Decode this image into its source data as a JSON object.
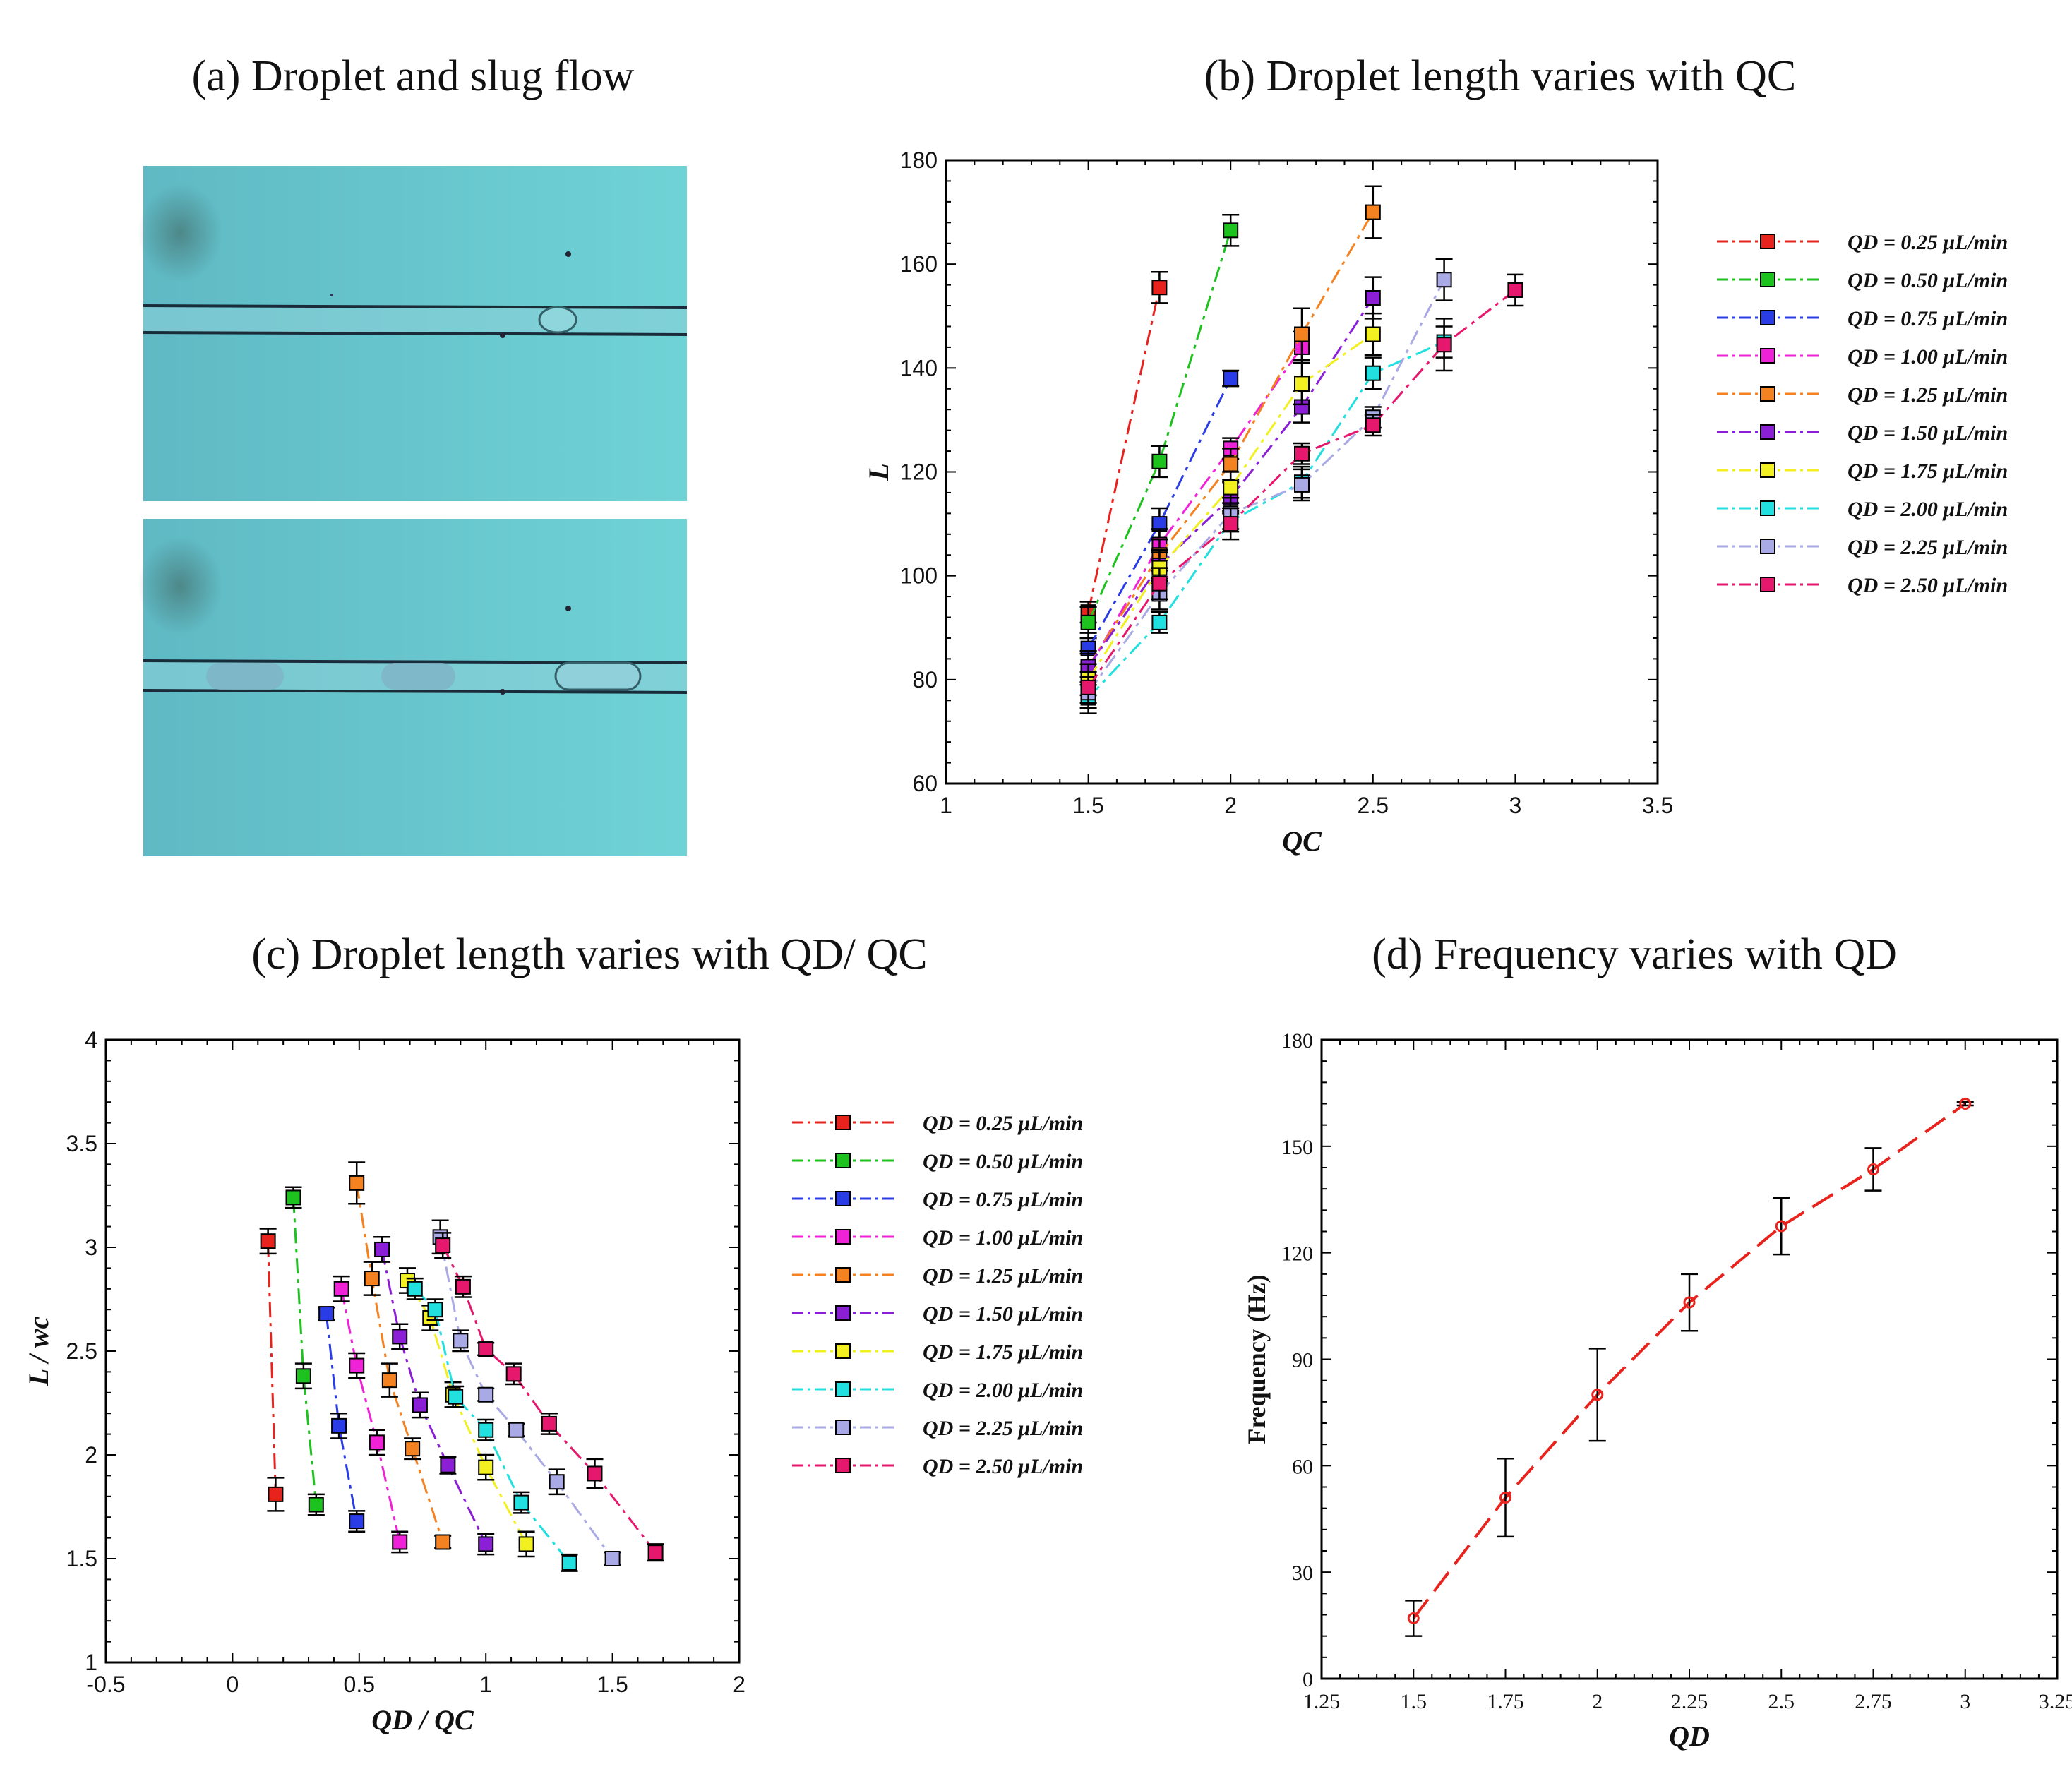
{
  "panel_a": {
    "title": "(a) Droplet and slug flow",
    "image_colors": {
      "bg1": "#5fb9c4",
      "bg2": "#6fd3d6",
      "line": "#1a2c3a",
      "droplet": "#7ec7d2"
    }
  },
  "legend_labels": [
    "QD = 0.25 μL/min",
    "QD = 0.50 μL/min",
    "QD = 0.75 μL/min",
    "QD = 1.00 μL/min",
    "QD = 1.25 μL/min",
    "QD = 1.50 μL/min",
    "QD = 1.75 μL/min",
    "QD = 2.00 μL/min",
    "QD = 2.25 μL/min",
    "QD = 2.50 μL/min"
  ],
  "chart_data": [
    {
      "id": "b",
      "type": "line",
      "title": "(b) Droplet length varies with QC",
      "xlabel": "QC",
      "ylabel": "L",
      "xlim": [
        1,
        3.5
      ],
      "ylim": [
        60,
        180
      ],
      "xticks": [
        "1",
        "1.5",
        "2",
        "2.5",
        "3",
        "3.5"
      ],
      "yticks": [
        "60",
        "80",
        "100",
        "120",
        "140",
        "160",
        "180"
      ],
      "series": [
        {
          "name": "QD = 0.25 μL/min",
          "color": "#e8231e",
          "points": [
            [
              1.5,
              93,
              2
            ],
            [
              1.75,
              155.5,
              3
            ]
          ]
        },
        {
          "name": "QD = 0.50 μL/min",
          "color": "#1ec21e",
          "points": [
            [
              1.5,
              91,
              3
            ],
            [
              1.75,
              122,
              3
            ],
            [
              2,
              166.5,
              3
            ]
          ]
        },
        {
          "name": "QD = 0.75 μL/min",
          "color": "#2a3ce6",
          "points": [
            [
              1.5,
              86,
              3
            ],
            [
              1.75,
              110,
              3
            ],
            [
              2,
              138,
              1.5
            ]
          ]
        },
        {
          "name": "QD = 1.00 μL/min",
          "color": "#f022d8",
          "points": [
            [
              1.5,
              82,
              3
            ],
            [
              1.75,
              106,
              3
            ],
            [
              2,
              124.5,
              2
            ],
            [
              2.25,
              144,
              3
            ]
          ]
        },
        {
          "name": "QD = 1.25 μL/min",
          "color": "#f58220",
          "points": [
            [
              1.5,
              82.5,
              3
            ],
            [
              1.75,
              104,
              3
            ],
            [
              2,
              121.5,
              3
            ],
            [
              2.25,
              146.5,
              5
            ],
            [
              2.5,
              170,
              5
            ]
          ]
        },
        {
          "name": "QD = 1.50 μL/min",
          "color": "#8b1fd6",
          "points": [
            [
              1.5,
              82.5,
              3
            ],
            [
              1.75,
              102,
              3
            ],
            [
              2,
              115,
              3
            ],
            [
              2.25,
              132.5,
              3
            ],
            [
              2.5,
              153.5,
              4
            ]
          ]
        },
        {
          "name": "QD = 1.75 μL/min",
          "color": "#f2f020",
          "points": [
            [
              1.5,
              80,
              3
            ],
            [
              1.75,
              101.5,
              3
            ],
            [
              2,
              117,
              3
            ],
            [
              2.25,
              137,
              4
            ],
            [
              2.5,
              146.5,
              4
            ]
          ]
        },
        {
          "name": "QD = 2.00 μL/min",
          "color": "#22e0e0",
          "points": [
            [
              1.5,
              76.5,
              3
            ],
            [
              1.75,
              91,
              2
            ],
            [
              2,
              110.5,
              2
            ],
            [
              2.25,
              118,
              3
            ],
            [
              2.5,
              139,
              3
            ],
            [
              2.75,
              145,
              3
            ]
          ]
        },
        {
          "name": "QD = 2.25 μL/min",
          "color": "#a9a9e6",
          "points": [
            [
              1.5,
              77.5,
              3
            ],
            [
              1.75,
              96.5,
              3
            ],
            [
              2,
              112,
              3
            ],
            [
              2.25,
              117.5,
              3
            ],
            [
              2.5,
              130.5,
              2
            ],
            [
              2.75,
              157,
              4
            ]
          ]
        },
        {
          "name": "QD = 2.50 μL/min",
          "color": "#e6186e",
          "points": [
            [
              1.5,
              78.5,
              3
            ],
            [
              1.75,
              98.5,
              3
            ],
            [
              2,
              110,
              3
            ],
            [
              2.25,
              123.5,
              2
            ],
            [
              2.5,
              129,
              2
            ],
            [
              2.75,
              144.5,
              5
            ],
            [
              3,
              155,
              3
            ]
          ]
        }
      ]
    },
    {
      "id": "c",
      "type": "line",
      "title": "(c) Droplet length varies with QD/ QC",
      "xlabel": "QD / QC",
      "ylabel": "L / wc",
      "xlim": [
        -0.5,
        2
      ],
      "ylim": [
        1,
        4
      ],
      "xticks": [
        "-0.5",
        "0",
        "0.5",
        "1",
        "1.5",
        "2"
      ],
      "yticks": [
        "1",
        "1.5",
        "2",
        "2.5",
        "3",
        "3.5",
        "4"
      ],
      "series": [
        {
          "name": "QD = 0.25 μL/min",
          "color": "#e8231e",
          "points": [
            [
              0.14,
              3.03,
              0.06
            ],
            [
              0.17,
              1.81,
              0.08
            ]
          ]
        },
        {
          "name": "QD = 0.50 μL/min",
          "color": "#1ec21e",
          "points": [
            [
              0.24,
              3.24,
              0.05
            ],
            [
              0.28,
              2.38,
              0.06
            ],
            [
              0.33,
              1.76,
              0.05
            ]
          ]
        },
        {
          "name": "QD = 0.75 μL/min",
          "color": "#2a3ce6",
          "points": [
            [
              0.37,
              2.68,
              0.03
            ],
            [
              0.42,
              2.14,
              0.06
            ],
            [
              0.49,
              1.68,
              0.05
            ]
          ]
        },
        {
          "name": "QD = 1.00 μL/min",
          "color": "#f022d8",
          "points": [
            [
              0.43,
              2.8,
              0.06
            ],
            [
              0.49,
              2.43,
              0.06
            ],
            [
              0.57,
              2.06,
              0.06
            ],
            [
              0.66,
              1.58,
              0.05
            ]
          ]
        },
        {
          "name": "QD = 1.25 μL/min",
          "color": "#f58220",
          "points": [
            [
              0.49,
              3.31,
              0.1
            ],
            [
              0.55,
              2.85,
              0.08
            ],
            [
              0.62,
              2.36,
              0.08
            ],
            [
              0.71,
              2.03,
              0.05
            ],
            [
              0.83,
              1.58,
              0.03
            ]
          ]
        },
        {
          "name": "QD = 1.50 μL/min",
          "color": "#8b1fd6",
          "points": [
            [
              0.59,
              2.99,
              0.06
            ],
            [
              0.66,
              2.57,
              0.06
            ],
            [
              0.74,
              2.24,
              0.06
            ],
            [
              0.85,
              1.95,
              0.04
            ],
            [
              1.0,
              1.57,
              0.05
            ]
          ]
        },
        {
          "name": "QD = 1.75 μL/min",
          "color": "#f2f020",
          "points": [
            [
              0.69,
              2.84,
              0.06
            ],
            [
              0.78,
              2.66,
              0.06
            ],
            [
              0.87,
              2.29,
              0.06
            ],
            [
              1.0,
              1.94,
              0.06
            ],
            [
              1.16,
              1.57,
              0.06
            ]
          ]
        },
        {
          "name": "QD = 2.00 μL/min",
          "color": "#22e0e0",
          "points": [
            [
              0.72,
              2.8,
              0.05
            ],
            [
              0.8,
              2.7,
              0.05
            ],
            [
              0.88,
              2.28,
              0.05
            ],
            [
              1.0,
              2.12,
              0.05
            ],
            [
              1.14,
              1.77,
              0.05
            ],
            [
              1.33,
              1.48,
              0.04
            ]
          ]
        },
        {
          "name": "QD = 2.25 μL/min",
          "color": "#a9a9e6",
          "points": [
            [
              0.82,
              3.05,
              0.08
            ],
            [
              0.9,
              2.55,
              0.05
            ],
            [
              1.0,
              2.29,
              0.03
            ],
            [
              1.12,
              2.12,
              0.03
            ],
            [
              1.28,
              1.87,
              0.06
            ],
            [
              1.5,
              1.5,
              0.03
            ]
          ]
        },
        {
          "name": "QD = 2.50 μL/min",
          "color": "#e6186e",
          "points": [
            [
              0.83,
              3.01,
              0.06
            ],
            [
              0.91,
              2.81,
              0.05
            ],
            [
              1.0,
              2.51,
              0.03
            ],
            [
              1.11,
              2.39,
              0.05
            ],
            [
              1.25,
              2.15,
              0.05
            ],
            [
              1.43,
              1.91,
              0.07
            ],
            [
              1.67,
              1.53,
              0.04
            ]
          ]
        }
      ]
    },
    {
      "id": "d",
      "type": "line",
      "title": "(d) Frequency varies with QD",
      "xlabel": "QD",
      "ylabel": "Frequency (Hz)",
      "xlim": [
        1.25,
        3.25
      ],
      "ylim": [
        0,
        180
      ],
      "xticks": [
        "1.25",
        "1.5",
        "1.75",
        "2",
        "2.25",
        "2.5",
        "2.75",
        "3",
        "3.25"
      ],
      "yticks": [
        "0",
        "30",
        "60",
        "90",
        "120",
        "150",
        "180"
      ],
      "series": [
        {
          "name": "Frequency",
          "color": "#e8231e",
          "points": [
            [
              1.5,
              17,
              5
            ],
            [
              1.75,
              51,
              11
            ],
            [
              2,
              80,
              13
            ],
            [
              2.25,
              106,
              8
            ],
            [
              2.5,
              127.5,
              8
            ],
            [
              2.75,
              143.5,
              6
            ],
            [
              3,
              162,
              0.5
            ]
          ]
        }
      ]
    }
  ]
}
